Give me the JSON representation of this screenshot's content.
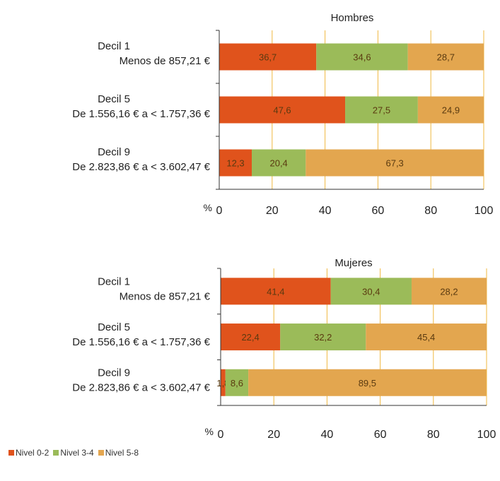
{
  "chart_data": [
    {
      "type": "bar",
      "orientation": "horizontal",
      "stacked": true,
      "title": "Hombres",
      "xlabel": "%",
      "xlim": [
        0,
        100
      ],
      "xticks": [
        0,
        20,
        40,
        60,
        80,
        100
      ],
      "grid": true,
      "categories": [
        [
          "Decil 1",
          "Menos de 857,21 €"
        ],
        [
          "Decil 5",
          "De 1.556,16 € a < 1.757,36 €"
        ],
        [
          "Decil 9",
          "De 2.823,86 € a < 3.602,47 €"
        ]
      ],
      "series": [
        {
          "name": "Nivel 0-2",
          "values": [
            36.7,
            47.6,
            12.3
          ],
          "labels": [
            "36,7",
            "47,6",
            "12,3"
          ]
        },
        {
          "name": "Nivel 3-4",
          "values": [
            34.6,
            27.5,
            20.4
          ],
          "labels": [
            "34,6",
            "27,5",
            "20,4"
          ]
        },
        {
          "name": "Nivel 5-8",
          "values": [
            28.7,
            24.9,
            67.3
          ],
          "labels": [
            "28,7",
            "24,9",
            "67,3"
          ]
        }
      ]
    },
    {
      "type": "bar",
      "orientation": "horizontal",
      "stacked": true,
      "title": "Mujeres",
      "xlabel": "%",
      "xlim": [
        0,
        100
      ],
      "xticks": [
        0,
        20,
        40,
        60,
        80,
        100
      ],
      "grid": true,
      "categories": [
        [
          "Decil 1",
          "Menos de 857,21 €"
        ],
        [
          "Decil 5",
          "De 1.556,16 € a < 1.757,36 €"
        ],
        [
          "Decil 9",
          "De 2.823,86 € a < 3.602,47 €"
        ]
      ],
      "series": [
        {
          "name": "Nivel 0-2",
          "values": [
            41.4,
            22.4,
            1.8
          ],
          "labels": [
            "41,4",
            "22,4",
            "1,8"
          ]
        },
        {
          "name": "Nivel 3-4",
          "values": [
            30.4,
            32.2,
            8.6
          ],
          "labels": [
            "30,4",
            "32,2",
            "8,6"
          ]
        },
        {
          "name": "Nivel 5-8",
          "values": [
            28.2,
            45.4,
            89.5
          ],
          "labels": [
            "28,2",
            "45,4",
            "89,5"
          ]
        }
      ]
    }
  ],
  "legend": {
    "placement": "bottom-left",
    "items": [
      {
        "label": "Nivel 0-2",
        "color": "#e0531c"
      },
      {
        "label": "Nivel 3-4",
        "color": "#9bbb59"
      },
      {
        "label": "Nivel 5-8",
        "color": "#e3a64f"
      }
    ]
  },
  "colors": {
    "series": [
      "#e0531c",
      "#9bbb59",
      "#e3a64f"
    ],
    "grid": "#f0b840",
    "axis": "#333333",
    "label": "#5a3a10"
  }
}
